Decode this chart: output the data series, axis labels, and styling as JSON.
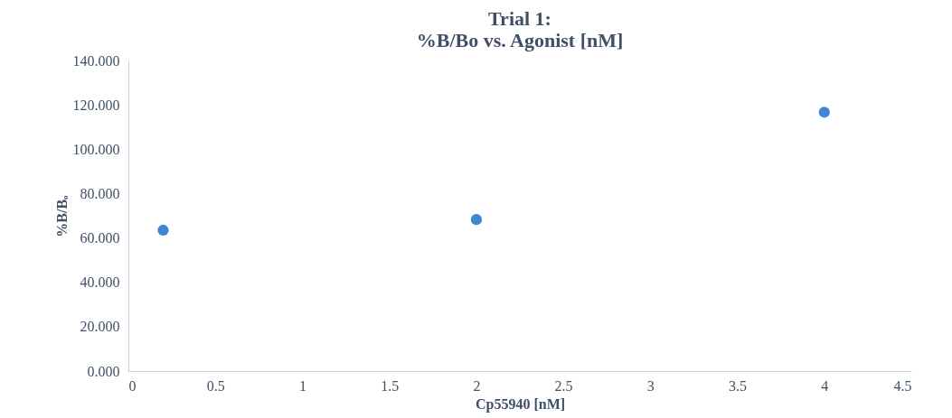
{
  "chart_data": {
    "type": "scatter",
    "title": "Trial 1:\n%B/Bo vs. Agonist [nM]",
    "xlabel": "Cp55940 [nM]",
    "ylabel": "%B/Bₒ",
    "x": [
      0.2,
      2,
      4
    ],
    "series": [
      {
        "color": "#3f87d3",
        "values": [
          63.5,
          68.3,
          116.7
        ]
      }
    ],
    "xlim": [
      0,
      4.5
    ],
    "xticks": [
      0,
      0.5,
      1,
      1.5,
      2,
      2.5,
      3,
      3.5,
      4,
      4.5
    ],
    "ylim": [
      0,
      140
    ],
    "yticks": [
      {
        "value": 0,
        "label": "0.000"
      },
      {
        "value": 20,
        "label": "20.000"
      },
      {
        "value": 40,
        "label": "40.000"
      },
      {
        "value": 60,
        "label": "60.000"
      },
      {
        "value": 80,
        "label": "80.000"
      },
      {
        "value": 100,
        "label": "100.000"
      },
      {
        "value": 120,
        "label": "120.000"
      },
      {
        "value": 140,
        "label": "140.000"
      }
    ],
    "grid": false,
    "legend": false,
    "marker": "circle"
  }
}
